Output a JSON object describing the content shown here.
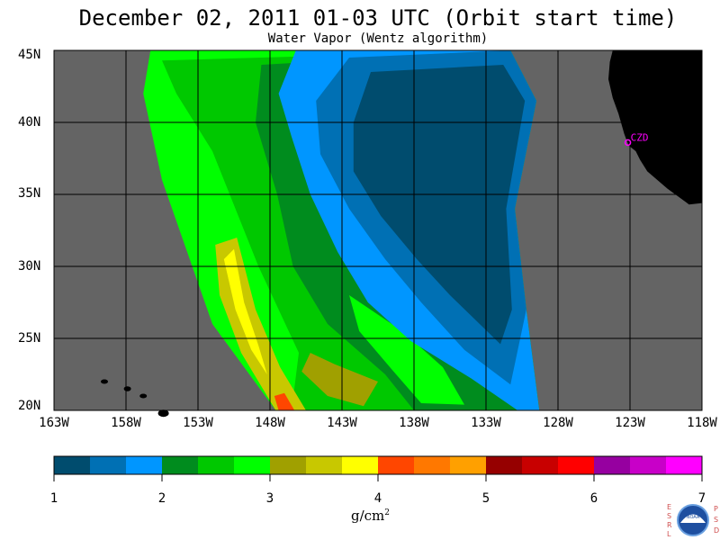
{
  "header": {
    "title": "December 02, 2011  01-03 UTC  (Orbit start time)",
    "subtitle": "Water Vapor (Wentz algorithm)"
  },
  "map": {
    "lat_range": [
      20,
      45
    ],
    "lon_range": [
      -163,
      -118
    ],
    "lat_ticks": [
      "45N",
      "40N",
      "35N",
      "30N",
      "25N",
      "20N"
    ],
    "lon_ticks": [
      "163W",
      "158W",
      "153W",
      "148W",
      "143W",
      "138W",
      "133W",
      "128W",
      "123W",
      "118W"
    ],
    "station_label": "CZD",
    "land_color": "#000000",
    "nodata_color": "#646464"
  },
  "colorbar": {
    "ticks": [
      "1",
      "2",
      "3",
      "4",
      "5",
      "6",
      "7"
    ],
    "units": "g/cm",
    "units_exp": "2",
    "colors": [
      "#004c6e",
      "#0070b4",
      "#0096ff",
      "#008c1e",
      "#00c800",
      "#00ff00",
      "#a0a000",
      "#c8c800",
      "#ffff00",
      "#ff4600",
      "#ff7800",
      "#ffa000",
      "#960000",
      "#c80000",
      "#ff0000",
      "#9600a0",
      "#c800c8",
      "#ff00ff"
    ]
  },
  "logo": {
    "left_text": "ESRL",
    "right_text": "PSD",
    "center_text": "NOAA"
  }
}
